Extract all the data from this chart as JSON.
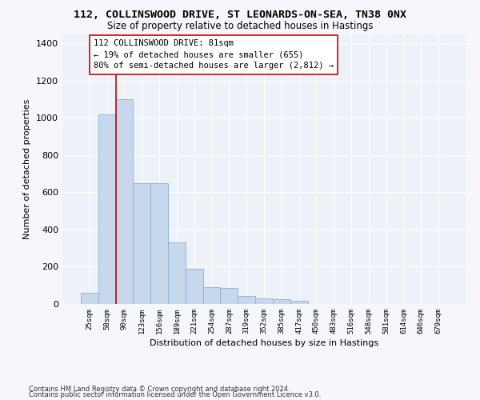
{
  "title1": "112, COLLINSWOOD DRIVE, ST LEONARDS-ON-SEA, TN38 0NX",
  "title2": "Size of property relative to detached houses in Hastings",
  "xlabel": "Distribution of detached houses by size in Hastings",
  "ylabel": "Number of detached properties",
  "bar_values": [
    62,
    1020,
    1100,
    650,
    650,
    330,
    190,
    90,
    88,
    45,
    30,
    25,
    17,
    0,
    0,
    0,
    0,
    0,
    0,
    0,
    0
  ],
  "bar_labels": [
    "25sqm",
    "58sqm",
    "90sqm",
    "123sqm",
    "156sqm",
    "189sqm",
    "221sqm",
    "254sqm",
    "287sqm",
    "319sqm",
    "352sqm",
    "385sqm",
    "417sqm",
    "450sqm",
    "483sqm",
    "516sqm",
    "548sqm",
    "581sqm",
    "614sqm",
    "646sqm",
    "679sqm"
  ],
  "bar_color": "#c8d8ec",
  "bar_edge_color": "#8aafd4",
  "bar_width": 1.0,
  "ylim": [
    0,
    1450
  ],
  "yticks": [
    0,
    200,
    400,
    600,
    800,
    1000,
    1200,
    1400
  ],
  "vline_x": 1.5,
  "vline_color": "#cc0000",
  "annotation_text": "112 COLLINSWOOD DRIVE: 81sqm\n← 19% of detached houses are smaller (655)\n80% of semi-detached houses are larger (2,812) →",
  "annotation_box_color": "#cc0000",
  "bg_color": "#edf2f9",
  "grid_color": "#ffffff",
  "footer1": "Contains HM Land Registry data © Crown copyright and database right 2024.",
  "footer2": "Contains public sector information licensed under the Open Government Licence v3.0.",
  "title_fontsize": 9.5,
  "subtitle_fontsize": 8.5,
  "annotation_fontsize": 7.5,
  "ylabel_fontsize": 8,
  "xlabel_fontsize": 8,
  "ytick_fontsize": 8,
  "xtick_fontsize": 6.5,
  "footer_fontsize": 6
}
